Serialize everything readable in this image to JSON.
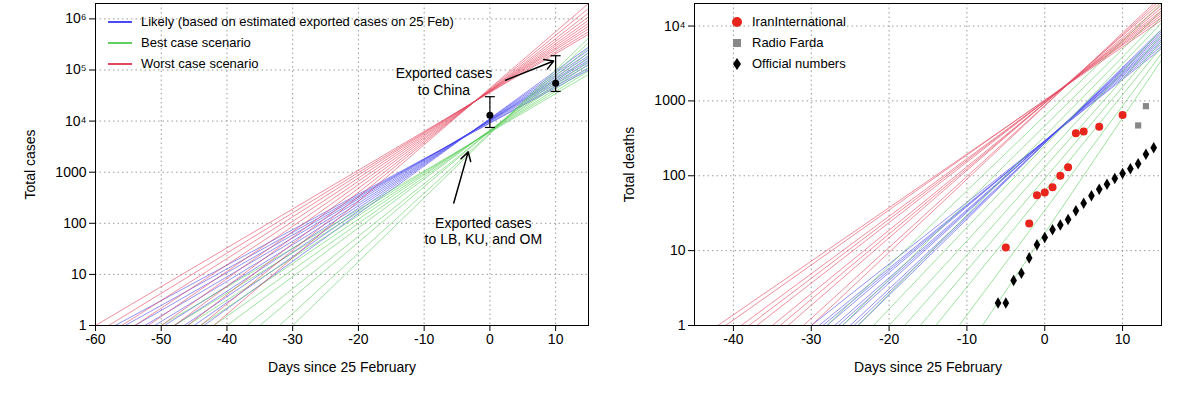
{
  "chart_data": [
    {
      "type": "line",
      "x_label": "Days since 25 February",
      "y_label": "Total cases",
      "log": "y",
      "grid": true,
      "legend": "top-left",
      "xlim": [
        -60,
        15
      ],
      "xticks": [
        -60,
        -50,
        -40,
        -30,
        -20,
        -10,
        0,
        10
      ],
      "ylim": [
        1,
        2000000
      ],
      "yticks": [
        1,
        10,
        100,
        1000,
        {
          "value": 10000,
          "label": "10⁴"
        },
        {
          "value": 100000,
          "label": "10⁵"
        },
        {
          "value": 1000000,
          "label": "10⁶"
        }
      ],
      "series": [
        {
          "name": "Likely (based on estimated exported cases on 25 Feb)",
          "color": "#4a4af2",
          "type": "line",
          "lines": [
            {
              "x": [
                -57,
                15
              ],
              "values": [
                1,
                100000
              ]
            },
            {
              "x": [
                -55.5,
                15
              ],
              "values": [
                1,
                110000
              ]
            },
            {
              "x": [
                -54,
                15
              ],
              "values": [
                1,
                125000
              ]
            },
            {
              "x": [
                -52.5,
                15
              ],
              "values": [
                1,
                140000
              ]
            },
            {
              "x": [
                -51,
                15
              ],
              "values": [
                1,
                155000
              ]
            },
            {
              "x": [
                -49.5,
                15
              ],
              "values": [
                1,
                170000
              ]
            },
            {
              "x": [
                -48,
                15
              ],
              "values": [
                1,
                190000
              ]
            },
            {
              "x": [
                -46.5,
                15
              ],
              "values": [
                1,
                215000
              ]
            },
            {
              "x": [
                -45,
                15
              ],
              "values": [
                1,
                245000
              ]
            },
            {
              "x": [
                -43.5,
                15
              ],
              "values": [
                1,
                280000
              ]
            }
          ]
        },
        {
          "name": "Best case scenario",
          "color": "#5fcf5f",
          "type": "line",
          "lines": [
            {
              "x": [
                -50,
                15
              ],
              "values": [
                1,
                82000
              ]
            },
            {
              "x": [
                -48,
                15
              ],
              "values": [
                1,
                95000
              ]
            },
            {
              "x": [
                -46,
                15
              ],
              "values": [
                1,
                110000
              ]
            },
            {
              "x": [
                -44,
                15
              ],
              "values": [
                1,
                130000
              ]
            },
            {
              "x": [
                -42,
                15
              ],
              "values": [
                1,
                150000
              ]
            },
            {
              "x": [
                -40,
                15
              ],
              "values": [
                1,
                180000
              ]
            },
            {
              "x": [
                -37,
                15
              ],
              "values": [
                1,
                220000
              ]
            },
            {
              "x": [
                -35,
                15
              ],
              "values": [
                1,
                270000
              ]
            },
            {
              "x": [
                -32,
                15
              ],
              "values": [
                1,
                340000
              ]
            },
            {
              "x": [
                -30,
                15
              ],
              "values": [
                1,
                420000
              ]
            }
          ]
        },
        {
          "name": "Worst case scenario",
          "color": "#e4465e",
          "type": "line",
          "lines": [
            {
              "x": [
                -60,
                15
              ],
              "values": [
                1,
                500000
              ]
            },
            {
              "x": [
                -58,
                15
              ],
              "values": [
                1,
                560000
              ]
            },
            {
              "x": [
                -56,
                15
              ],
              "values": [
                1,
                640000
              ]
            },
            {
              "x": [
                -54,
                15
              ],
              "values": [
                1,
                720000
              ]
            },
            {
              "x": [
                -52,
                15
              ],
              "values": [
                1,
                820000
              ]
            },
            {
              "x": [
                -50,
                15
              ],
              "values": [
                1,
                940000
              ]
            },
            {
              "x": [
                -48,
                15
              ],
              "values": [
                1,
                1100000
              ]
            },
            {
              "x": [
                -46,
                15
              ],
              "values": [
                1,
                1300000
              ]
            },
            {
              "x": [
                -44,
                15
              ],
              "values": [
                1,
                1600000
              ]
            },
            {
              "x": [
                -42,
                15
              ],
              "values": [
                1,
                2000000
              ]
            }
          ]
        }
      ],
      "error_bars": {
        "color": "#000000",
        "marker": "circle",
        "x": [
          0,
          10
        ],
        "values": [
          13000,
          55000
        ],
        "low": [
          7500,
          38000
        ],
        "high": [
          30000,
          190000
        ]
      },
      "annotations": [
        {
          "text": "Exported cases\nto China",
          "x": -7,
          "y": 60000,
          "arrow": {
            "x": [
              2.4,
              9.7
            ],
            "values": [
              63000,
              150000
            ]
          }
        },
        {
          "text": "Exported cases\nto LB, KU, and OM",
          "x": -1,
          "y": 70,
          "arrow": {
            "x": [
              -5.5,
              -3.3
            ],
            "values": [
              250,
              2500
            ]
          }
        }
      ]
    },
    {
      "type": "line",
      "x_label": "Days since 25 February",
      "y_label": "Total deaths",
      "log": "y",
      "grid": true,
      "legend": "top-left",
      "xlim": [
        -45,
        15
      ],
      "xticks": [
        -40,
        -30,
        -20,
        -10,
        0,
        10
      ],
      "ylim": [
        1,
        20000
      ],
      "yticks": [
        1,
        10,
        100,
        1000,
        {
          "value": 10000,
          "label": "10⁴"
        }
      ],
      "series": [
        {
          "color": "#4a4af2",
          "type": "line",
          "lines": [
            {
              "x": [
                -30,
                15
              ],
              "values": [
                1,
                5000
              ]
            },
            {
              "x": [
                -29,
                15
              ],
              "values": [
                1,
                5400
              ]
            },
            {
              "x": [
                -28.5,
                15
              ],
              "values": [
                1,
                5800
              ]
            },
            {
              "x": [
                -28,
                15
              ],
              "values": [
                1,
                6200
              ]
            },
            {
              "x": [
                -27,
                15
              ],
              "values": [
                1,
                6600
              ]
            },
            {
              "x": [
                -26.5,
                15
              ],
              "values": [
                1,
                7000
              ]
            },
            {
              "x": [
                -26,
                15
              ],
              "values": [
                1,
                7500
              ]
            },
            {
              "x": [
                -25,
                15
              ],
              "values": [
                1,
                8000
              ]
            },
            {
              "x": [
                -24.5,
                15
              ],
              "values": [
                1,
                8500
              ]
            },
            {
              "x": [
                -24,
                15
              ],
              "values": [
                1,
                9000
              ]
            }
          ]
        },
        {
          "color": "#5fcf5f",
          "type": "line",
          "lines": [
            {
              "x": [
                -28,
                15
              ],
              "values": [
                1,
                20000
              ]
            },
            {
              "x": [
                -26,
                15
              ],
              "values": [
                1,
                16000
              ]
            },
            {
              "x": [
                -24,
                15
              ],
              "values": [
                1,
                13000
              ]
            },
            {
              "x": [
                -22,
                15
              ],
              "values": [
                1,
                11000
              ]
            },
            {
              "x": [
                -20,
                15
              ],
              "values": [
                1,
                9000
              ]
            },
            {
              "x": [
                -18,
                15
              ],
              "values": [
                1,
                7500
              ]
            },
            {
              "x": [
                -16,
                15
              ],
              "values": [
                1,
                6300
              ]
            },
            {
              "x": [
                -14,
                15
              ],
              "values": [
                1,
                5300
              ]
            },
            {
              "x": [
                -11,
                15
              ],
              "values": [
                1,
                4300
              ]
            },
            {
              "x": [
                -8,
                15
              ],
              "values": [
                1,
                3500
              ]
            }
          ]
        },
        {
          "color": "#e4465e",
          "type": "line",
          "lines": [
            {
              "x": [
                -42,
                15
              ],
              "values": [
                1,
                12000
              ]
            },
            {
              "x": [
                -41,
                15
              ],
              "values": [
                1,
                13000
              ]
            },
            {
              "x": [
                -39,
                15
              ],
              "values": [
                1,
                14000
              ]
            },
            {
              "x": [
                -38,
                15
              ],
              "values": [
                1,
                15000
              ]
            },
            {
              "x": [
                -37,
                15
              ],
              "values": [
                1,
                16000
              ]
            },
            {
              "x": [
                -35,
                15
              ],
              "values": [
                1,
                17500
              ]
            },
            {
              "x": [
                -34,
                15
              ],
              "values": [
                1,
                19000
              ]
            },
            {
              "x": [
                -33,
                15
              ],
              "values": [
                1,
                21000
              ]
            },
            {
              "x": [
                -31,
                15
              ],
              "values": [
                1,
                23000
              ]
            },
            {
              "x": [
                -30,
                15
              ],
              "values": [
                1,
                25000
              ]
            }
          ]
        },
        {
          "name": "IranInternational",
          "color": "#e8251d",
          "type": "scatter",
          "marker": "circle",
          "x": [
            -5,
            -2,
            -1,
            0,
            1,
            2,
            3,
            4,
            5,
            7,
            10
          ],
          "values": [
            11,
            23,
            55,
            60,
            70,
            100,
            130,
            370,
            390,
            450,
            650
          ]
        },
        {
          "name": "Radio Farda",
          "color": "#888888",
          "type": "scatter",
          "marker": "square",
          "x": [
            12,
            13
          ],
          "values": [
            470,
            850
          ]
        },
        {
          "name": "Official numbers",
          "color": "#000000",
          "type": "scatter",
          "marker": "diamond",
          "x": [
            -6,
            -5,
            -4,
            -3,
            -2,
            -1,
            0,
            1,
            2,
            3,
            4,
            5,
            6,
            7,
            8,
            9,
            10,
            11,
            12,
            13,
            14
          ],
          "values": [
            2,
            2,
            4,
            5,
            8,
            12,
            15,
            19,
            22,
            26,
            34,
            43,
            54,
            66,
            77,
            92,
            107,
            124,
            145,
            194,
            237
          ]
        }
      ]
    }
  ]
}
